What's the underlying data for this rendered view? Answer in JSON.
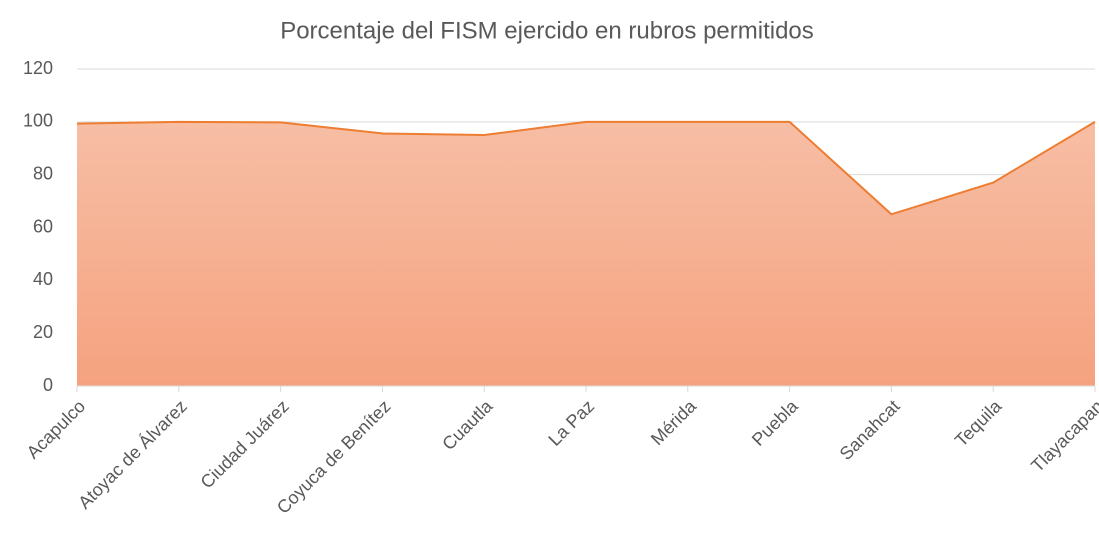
{
  "chart_data": {
    "type": "area",
    "title": "Porcentaje del FISM ejercido en rubros permitidos",
    "categories": [
      "Acapulco",
      "Atoyac de Álvarez",
      "Ciudad Juárez",
      "Coyuca de Benítez",
      "Cuautla",
      "La Paz",
      "Mérida",
      "Puebla",
      "Sanahcat",
      "Tequila",
      "Tlayacapan"
    ],
    "values": [
      99.3,
      100,
      99.8,
      95.6,
      95,
      100,
      100,
      100,
      65,
      77,
      100
    ],
    "color": "#ed7d31",
    "ylim": [
      0,
      120
    ],
    "yticks": [
      0,
      20,
      40,
      60,
      80,
      100,
      120
    ],
    "grid": true
  }
}
